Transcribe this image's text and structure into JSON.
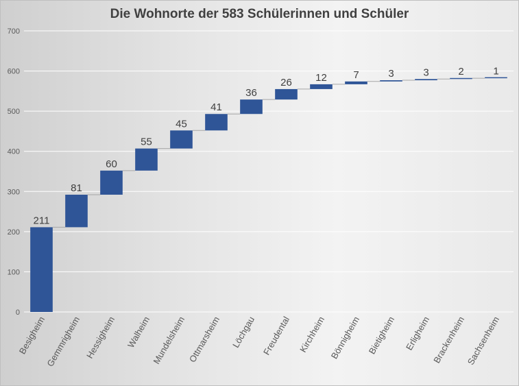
{
  "chart_data": {
    "type": "bar",
    "subtype": "waterfall",
    "title": "Die Wohnorte der 583 Schülerinnen und Schüler",
    "categories": [
      "Besigheim",
      "Gemmrigheim",
      "Hessigheim",
      "Walheim",
      "Mundelsheim",
      "Ottmarsheim",
      "Löchgau",
      "Freudental",
      "Kirchheim",
      "Bönnigheim",
      "Bietigheim",
      "Erligheim",
      "Brackenheim",
      "Sachsenheim"
    ],
    "values": [
      211,
      81,
      60,
      55,
      45,
      41,
      36,
      26,
      12,
      7,
      3,
      3,
      2,
      1
    ],
    "data_labels": [
      "211",
      "81",
      "60",
      "55",
      "45",
      "41",
      "36",
      "26",
      "12",
      "7",
      "3",
      "3",
      "2",
      "1"
    ],
    "ylim": [
      0,
      700
    ],
    "yticks": [
      0,
      100,
      200,
      300,
      400,
      500,
      600,
      700
    ],
    "ytick_labels": [
      "0",
      "100",
      "200",
      "300",
      "400",
      "500",
      "600",
      "700"
    ],
    "xlabel": "",
    "ylabel": "",
    "grid": true,
    "legend": "none",
    "colors": {
      "bar": "#2F5597",
      "grid": "#ffffff",
      "connector": "#a6a6a6"
    }
  }
}
